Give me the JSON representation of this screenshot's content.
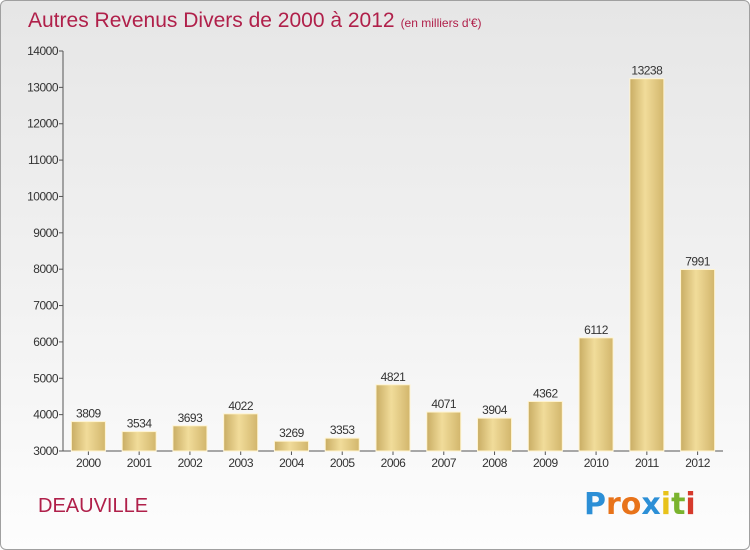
{
  "title": "Autres Revenus Divers de 2000 à 2012",
  "subtitle": "(en milliers d'€)",
  "location": "DEAUVILLE",
  "logo": {
    "letters": [
      "P",
      "r",
      "o",
      "x",
      "i",
      "t",
      "i"
    ],
    "colors": [
      "#2c8fd6",
      "#e8731a",
      "#e8731a",
      "#2c8fd6",
      "#e8c21a",
      "#7ab32e",
      "#d63a2c"
    ]
  },
  "chart_data": {
    "type": "bar",
    "title": "Autres Revenus Divers de 2000 à 2012",
    "subtitle": "(en milliers d'€)",
    "xlabel": "",
    "ylabel": "",
    "categories": [
      "2000",
      "2001",
      "2002",
      "2003",
      "2004",
      "2005",
      "2006",
      "2007",
      "2008",
      "2009",
      "2010",
      "2011",
      "2012"
    ],
    "values": [
      3809,
      3534,
      3693,
      4022,
      3269,
      3353,
      4821,
      4071,
      3904,
      4362,
      6112,
      13238,
      7991
    ],
    "data_labels": [
      "3809",
      "3534",
      "3693",
      "4022",
      "3269",
      "3353",
      "4821",
      "4071",
      "3904",
      "4362",
      "6112",
      "13238",
      "7991"
    ],
    "ylim": [
      3000,
      14000
    ],
    "yticks": [
      3000,
      4000,
      5000,
      6000,
      7000,
      8000,
      9000,
      10000,
      11000,
      12000,
      13000,
      14000
    ],
    "grid": false,
    "bar_color": "#e6cd82"
  }
}
